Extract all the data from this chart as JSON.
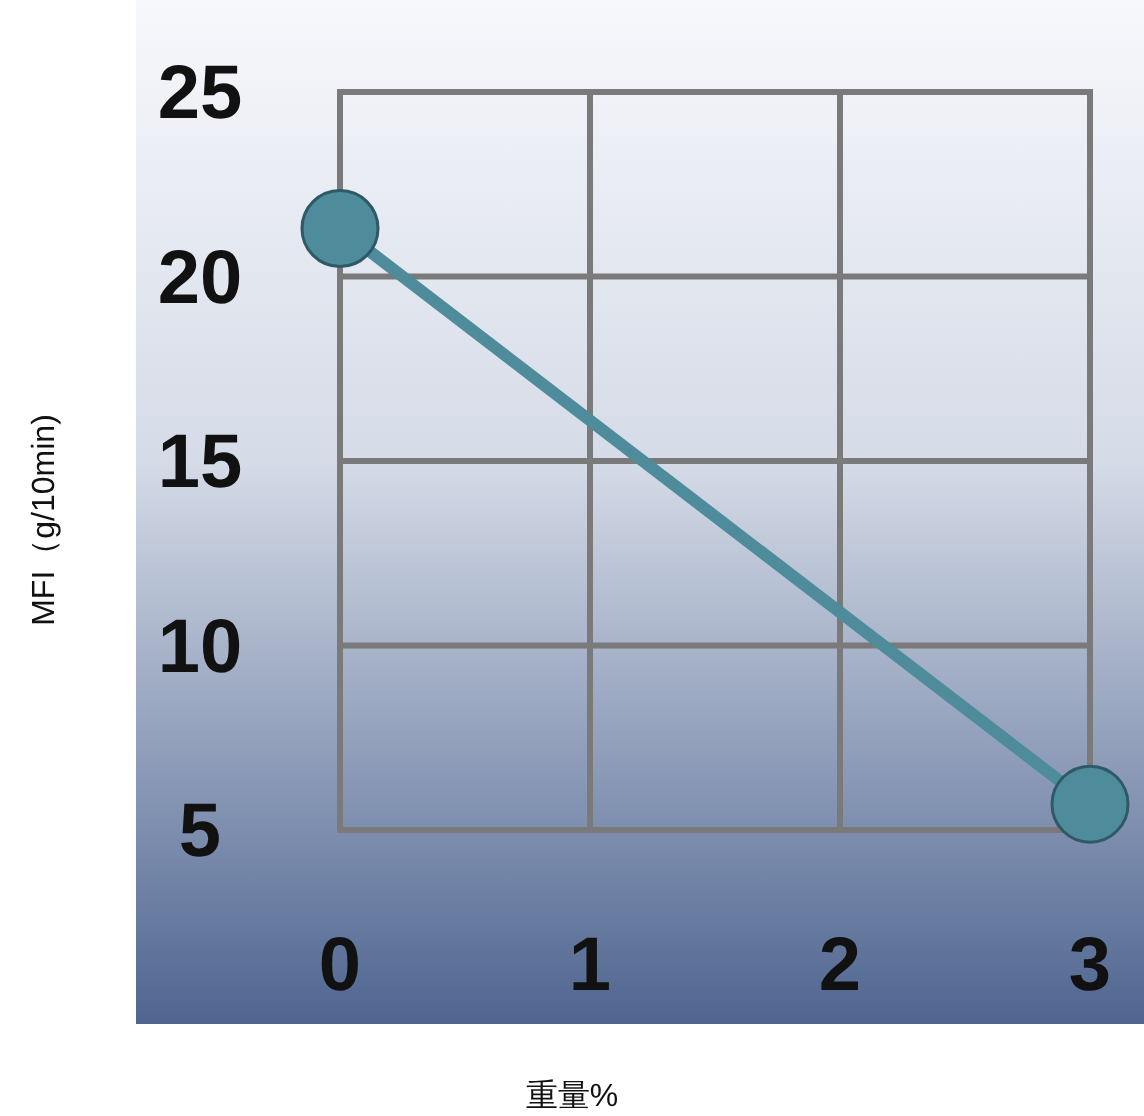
{
  "chart_data": {
    "type": "line",
    "xlabel": "重量%",
    "ylabel": "MFI（g/10min)",
    "x": [
      0,
      3
    ],
    "series": [
      {
        "color": "#4e8c9c",
        "values": [
          21.3,
          5.7
        ]
      }
    ],
    "xlim": [
      0,
      3
    ],
    "xticks": [
      0,
      1,
      2,
      3
    ],
    "ylim": [
      5,
      25
    ],
    "yticks": [
      5,
      10,
      15,
      20,
      25
    ],
    "grid": true,
    "marker": "circle",
    "line_style": "solid"
  }
}
